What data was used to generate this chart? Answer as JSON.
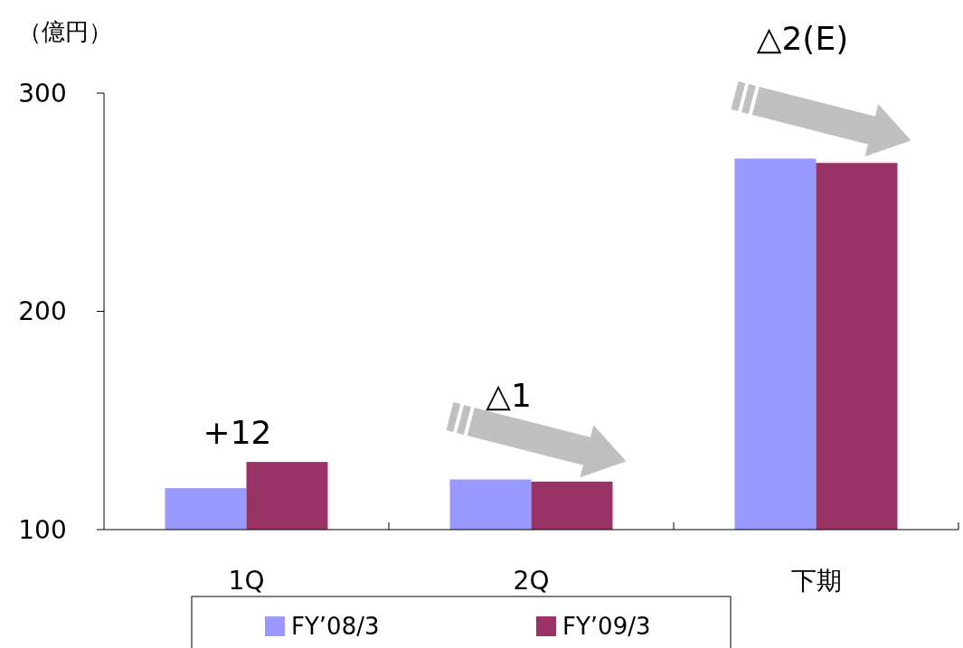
{
  "chart_data": {
    "type": "bar",
    "ylabel": "（億円）",
    "categories": [
      "1Q",
      "2Q",
      "下期"
    ],
    "series": [
      {
        "name": "FY’08/3",
        "color": "#9999ff",
        "values": [
          119,
          123,
          270
        ]
      },
      {
        "name": "FY’09/3",
        "color": "#993366",
        "values": [
          131,
          122,
          268
        ]
      }
    ],
    "ylim": [
      100,
      300
    ],
    "yticks": [
      100,
      200,
      300
    ],
    "grid": false,
    "legend": "bottom",
    "annotations": [
      "+12",
      "△1",
      "△2(E)"
    ]
  }
}
